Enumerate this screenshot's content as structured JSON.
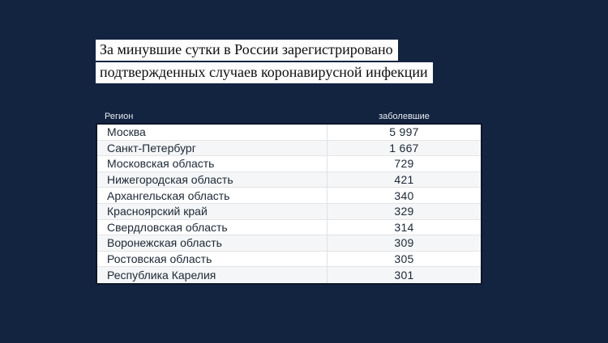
{
  "title": {
    "line1": "За минувшие сутки в России зарегистрировано",
    "line2": "подтвержденных случаев коронавирусной инфекции"
  },
  "table": {
    "columns": {
      "region": "Регион",
      "cases": "заболевшие"
    },
    "rows": [
      {
        "region": "Москва",
        "cases": "5 997"
      },
      {
        "region": "Санкт-Петербург",
        "cases": "1 667"
      },
      {
        "region": "Московская область",
        "cases": "729"
      },
      {
        "region": "Нижегородская область",
        "cases": "421"
      },
      {
        "region": "Архангельская область",
        "cases": "340"
      },
      {
        "region": "Красноярский край",
        "cases": "329"
      },
      {
        "region": "Свердловская область",
        "cases": "314"
      },
      {
        "region": "Воронежская область",
        "cases": "309"
      },
      {
        "region": "Ростовская область",
        "cases": "305"
      },
      {
        "region": "Республика Карелия",
        "cases": "301"
      }
    ]
  },
  "chart_data": {
    "type": "table",
    "title": "За минувшие сутки в России зарегистрировано подтвержденных случаев коронавирусной инфекции",
    "columns": [
      "Регион",
      "заболевшие"
    ],
    "rows": [
      [
        "Москва",
        5997
      ],
      [
        "Санкт-Петербург",
        1667
      ],
      [
        "Московская область",
        729
      ],
      [
        "Нижегородская область",
        421
      ],
      [
        "Архангельская область",
        340
      ],
      [
        "Красноярский край",
        329
      ],
      [
        "Свердловская область",
        314
      ],
      [
        "Воронежская область",
        309
      ],
      [
        "Ростовская область",
        305
      ],
      [
        "Республика Карелия",
        301
      ]
    ]
  },
  "colors": {
    "background": "#132441",
    "headline_box": "#fdfdfd",
    "headline_text": "#0e0e0e",
    "header_label_text": "#e9edf3",
    "table_border": "#0d1629",
    "row_odd": "#ffffff",
    "row_even": "#f5f6f7",
    "row_text": "#1c2735"
  }
}
